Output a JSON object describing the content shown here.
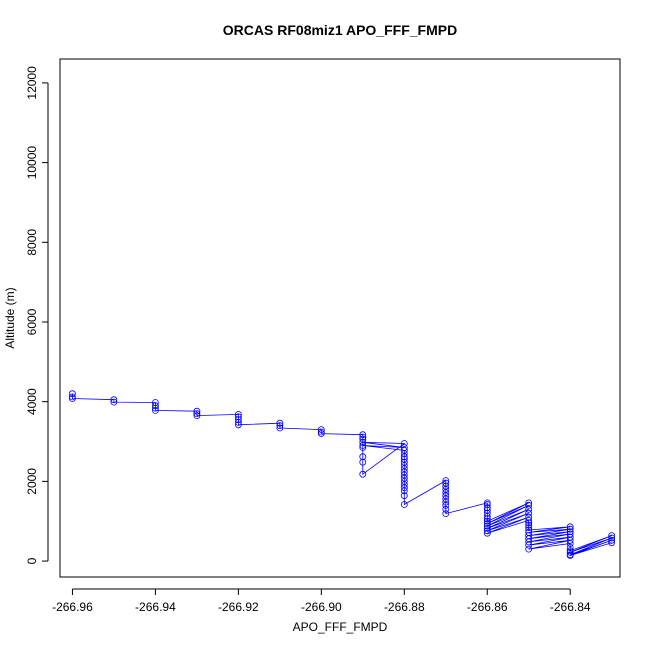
{
  "chart_data": {
    "type": "line",
    "title": "ORCAS RF08miz1 APO_FFF_FMPD",
    "xlabel": "APO_FFF_FMPD",
    "ylabel": "Altitude (m)",
    "xlim": [
      -266.963,
      -266.828
    ],
    "ylim": [
      -400,
      12600
    ],
    "xticks": [
      -266.96,
      -266.94,
      -266.92,
      -266.9,
      -266.88,
      -266.86,
      -266.84
    ],
    "xtick_labels": [
      "-266.96",
      "-266.94",
      "-266.92",
      "-266.90",
      "-266.88",
      "-266.86",
      "-266.84"
    ],
    "yticks": [
      0,
      2000,
      4000,
      6000,
      8000,
      10000,
      12000
    ],
    "ytick_labels": [
      "0",
      "2000",
      "4000",
      "6000",
      "8000",
      "10000",
      "12000"
    ],
    "marker": "open-circle",
    "series_color": "#0000ff",
    "series": [
      {
        "x": [
          -266.96,
          -266.96,
          -266.96,
          -266.95,
          -266.95,
          -266.94,
          -266.94,
          -266.94,
          -266.94,
          -266.93,
          -266.93,
          -266.93,
          -266.92,
          -266.92,
          -266.92,
          -266.92,
          -266.92,
          -266.91,
          -266.91,
          -266.91,
          -266.9,
          -266.9,
          -266.9,
          -266.89,
          -266.89,
          -266.89,
          -266.89,
          -266.89,
          -266.89,
          -266.89,
          -266.88,
          -266.89,
          -266.88,
          -266.89,
          -266.88,
          -266.88,
          -266.88,
          -266.88,
          -266.88,
          -266.88,
          -266.88,
          -266.88,
          -266.88,
          -266.88,
          -266.88,
          -266.88,
          -266.88,
          -266.88,
          -266.88,
          -266.88,
          -266.87,
          -266.87,
          -266.87,
          -266.87,
          -266.87,
          -266.87,
          -266.87,
          -266.87,
          -266.87,
          -266.87,
          -266.87,
          -266.86,
          -266.86,
          -266.86,
          -266.86,
          -266.86,
          -266.86,
          -266.86,
          -266.86,
          -266.85,
          -266.86,
          -266.85,
          -266.86,
          -266.85,
          -266.86,
          -266.85,
          -266.86,
          -266.85,
          -266.86,
          -266.85,
          -266.85,
          -266.85,
          -266.85,
          -266.85,
          -266.84,
          -266.85,
          -266.84,
          -266.85,
          -266.84,
          -266.85,
          -266.84,
          -266.85,
          -266.84,
          -266.85,
          -266.84,
          -266.85,
          -266.84,
          -266.84,
          -266.84,
          -266.83,
          -266.84,
          -266.83,
          -266.84,
          -266.83,
          -266.84,
          -266.83
        ],
        "y": [
          4200,
          4120,
          4080,
          4050,
          3990,
          3980,
          3900,
          3840,
          3780,
          3760,
          3700,
          3650,
          3680,
          3620,
          3550,
          3480,
          3420,
          3460,
          3400,
          3340,
          3300,
          3240,
          3200,
          3170,
          3110,
          3060,
          2850,
          2620,
          2480,
          2180,
          2950,
          2980,
          2850,
          2900,
          2780,
          2700,
          2620,
          2560,
          2480,
          2400,
          2320,
          2240,
          2160,
          2080,
          2000,
          1920,
          1840,
          1760,
          1640,
          1420,
          2020,
          1960,
          1880,
          1800,
          1720,
          1640,
          1560,
          1480,
          1400,
          1300,
          1190,
          1460,
          1420,
          1340,
          1280,
          1200,
          1120,
          1060,
          1000,
          1460,
          940,
          1400,
          880,
          1300,
          820,
          1200,
          760,
          1100,
          700,
          1020,
          960,
          900,
          840,
          780,
          860,
          720,
          800,
          640,
          740,
          560,
          680,
          480,
          600,
          400,
          520,
          300,
          440,
          340,
          260,
          640,
          220,
          580,
          160,
          520,
          140,
          460
        ]
      }
    ]
  }
}
